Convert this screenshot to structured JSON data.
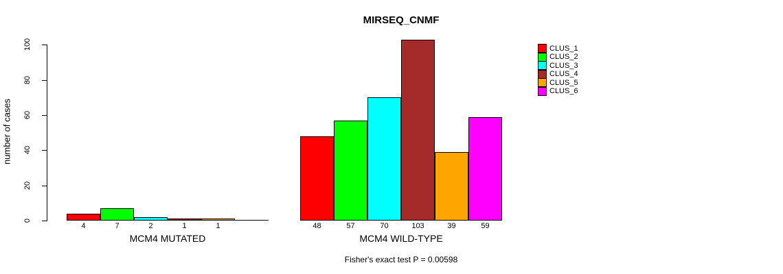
{
  "chart_data": {
    "type": "bar",
    "title": "MIRSEQ_CNMF",
    "ylabel": "number of cases",
    "xlabel": "",
    "ylim": [
      0,
      103
    ],
    "yticks": [
      0,
      20,
      40,
      60,
      80,
      100
    ],
    "grid": false,
    "legend_position": "right",
    "categories": [
      "CLUS_1",
      "CLUS_2",
      "CLUS_3",
      "CLUS_4",
      "CLUS_5",
      "CLUS_6"
    ],
    "colors": [
      "#FF0000",
      "#00FF00",
      "#00FFFF",
      "#A52A2A",
      "#FFA500",
      "#FF00FF"
    ],
    "groups": [
      {
        "label": "MCM4 MUTATED",
        "values": [
          4,
          7,
          2,
          1,
          1,
          0
        ],
        "bar_labels": [
          "4",
          "7",
          "2",
          "1",
          "1",
          ""
        ]
      },
      {
        "label": "MCM4 WILD-TYPE",
        "values": [
          48,
          57,
          70,
          103,
          39,
          59
        ],
        "bar_labels": [
          "48",
          "57",
          "70",
          "103",
          "39",
          "59"
        ]
      }
    ],
    "annotation": "Fisher's exact test P = 0.00598"
  }
}
